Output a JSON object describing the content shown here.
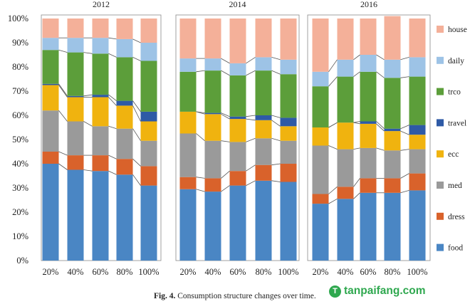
{
  "chart_data": {
    "type": "bar",
    "stacked": true,
    "ylim": [
      0,
      100
    ],
    "yticks": [
      "0%",
      "10%",
      "20%",
      "30%",
      "40%",
      "50%",
      "60%",
      "70%",
      "80%",
      "90%",
      "100%"
    ],
    "categories": [
      "20%",
      "40%",
      "60%",
      "80%",
      "100%"
    ],
    "legend_position": "right",
    "grid": false,
    "series_names": [
      "food",
      "dress",
      "med",
      "ecc",
      "travel",
      "trco",
      "daily",
      "house"
    ],
    "colors": {
      "food": "#4a86c4",
      "dress": "#d9622b",
      "med": "#9a9a9a",
      "ecc": "#f0b30f",
      "travel": "#2e5aa6",
      "trco": "#5c9e3a",
      "daily": "#9dc3e6",
      "house": "#f4b099"
    },
    "panels": [
      {
        "title": "2012",
        "series": [
          {
            "name": "food",
            "values": [
              40,
              37.5,
              37,
              35.5,
              31
            ]
          },
          {
            "name": "dress",
            "values": [
              5,
              6,
              6.5,
              6.5,
              8
            ]
          },
          {
            "name": "med",
            "values": [
              17,
              14,
              12,
              12.5,
              10.5
            ]
          },
          {
            "name": "ecc",
            "values": [
              10.5,
              10,
              12,
              9.5,
              8
            ]
          },
          {
            "name": "travel",
            "values": [
              0.5,
              0.5,
              1,
              2,
              4
            ]
          },
          {
            "name": "trco",
            "values": [
              14,
              18,
              17,
              18,
              21
            ]
          },
          {
            "name": "daily",
            "values": [
              5,
              6,
              6.5,
              7.5,
              7.5
            ]
          },
          {
            "name": "house",
            "values": [
              8,
              8,
              8,
              8.5,
              10
            ]
          }
        ]
      },
      {
        "title": "2014",
        "series": [
          {
            "name": "food",
            "values": [
              29.5,
              28.5,
              31,
              33,
              32.5
            ]
          },
          {
            "name": "dress",
            "values": [
              5,
              5.5,
              6,
              6.5,
              7.5
            ]
          },
          {
            "name": "med",
            "values": [
              18,
              15.5,
              12,
              11,
              9.5
            ]
          },
          {
            "name": "ecc",
            "values": [
              9,
              11,
              9.5,
              7.5,
              6
            ]
          },
          {
            "name": "travel",
            "values": [
              0,
              0.5,
              1,
              2,
              3.5
            ]
          },
          {
            "name": "trco",
            "values": [
              16.5,
              17.5,
              17,
              18.5,
              18
            ]
          },
          {
            "name": "daily",
            "values": [
              5.5,
              5,
              5,
              5.5,
              6
            ]
          },
          {
            "name": "house",
            "values": [
              16.5,
              16.5,
              18.5,
              16,
              17
            ]
          }
        ]
      },
      {
        "title": "2016",
        "series": [
          {
            "name": "food",
            "values": [
              23.5,
              25.5,
              28,
              28,
              29
            ]
          },
          {
            "name": "dress",
            "values": [
              4,
              5,
              6,
              6,
              7
            ]
          },
          {
            "name": "med",
            "values": [
              20,
              15.5,
              12.5,
              11.5,
              10
            ]
          },
          {
            "name": "ecc",
            "values": [
              7.5,
              11,
              10,
              8,
              6
            ]
          },
          {
            "name": "travel",
            "values": [
              0,
              0,
              1,
              1,
              4
            ]
          },
          {
            "name": "trco",
            "values": [
              17,
              19,
              20.5,
              21,
              20
            ]
          },
          {
            "name": "daily",
            "values": [
              6,
              7,
              7,
              7.5,
              8
            ]
          },
          {
            "name": "house",
            "values": [
              22,
              17,
              15,
              18,
              16
            ]
          }
        ]
      }
    ]
  },
  "caption": {
    "label": "Fig. 4.",
    "text": "Consumption structure changes over time."
  },
  "watermark": {
    "logo": "T",
    "text": "tanpaifang.com"
  }
}
